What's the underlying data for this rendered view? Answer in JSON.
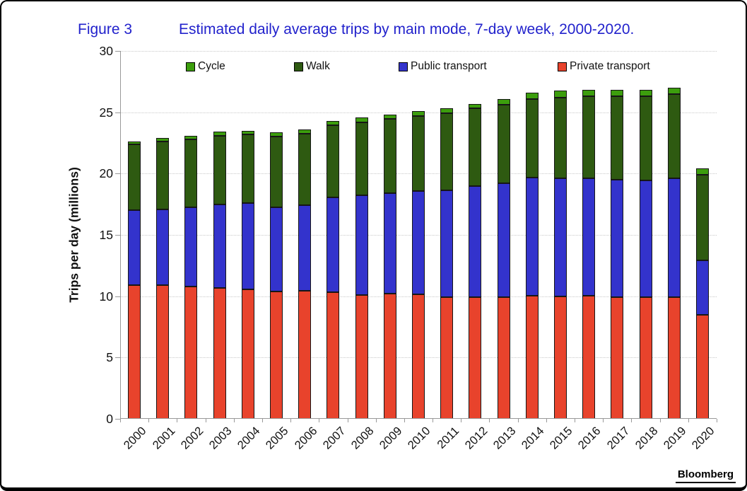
{
  "figure": {
    "label": "Figure 3",
    "title": "Estimated daily average trips by main mode, 7-day week, 2000-2020.",
    "title_color": "#2222cc"
  },
  "branding": {
    "logo": "Bloomberg"
  },
  "chart_data": {
    "type": "bar",
    "stacked": true,
    "title": "Estimated daily average trips by main mode, 7-day week, 2000-2020.",
    "xlabel": "",
    "ylabel": "Trips per day (millions)",
    "ylim": [
      0,
      30
    ],
    "ytick_interval": 5,
    "yticks": [
      "0",
      "5",
      "10",
      "15",
      "20",
      "25",
      "30"
    ],
    "grid": "horizontal-dotted",
    "legend_position": "top",
    "legend_order": [
      "Cycle",
      "Walk",
      "Public transport",
      "Private transport"
    ],
    "categories": [
      "2000",
      "2001",
      "2002",
      "2003",
      "2004",
      "2005",
      "2006",
      "2007",
      "2008",
      "2009",
      "2010",
      "2011",
      "2012",
      "2013",
      "2014",
      "2015",
      "2016",
      "2017",
      "2018",
      "2019",
      "2020"
    ],
    "series": [
      {
        "name": "Private transport",
        "color": "#e8432c",
        "values": [
          10.9,
          10.9,
          10.8,
          10.7,
          10.55,
          10.4,
          10.45,
          10.3,
          10.1,
          10.2,
          10.15,
          9.95,
          9.95,
          9.9,
          10.05,
          10.0,
          10.05,
          9.95,
          9.9,
          9.9,
          8.5
        ]
      },
      {
        "name": "Public transport",
        "color": "#3333cc",
        "values": [
          6.1,
          6.2,
          6.45,
          6.8,
          7.05,
          6.85,
          7.0,
          7.75,
          8.15,
          8.2,
          8.4,
          8.7,
          9.05,
          9.3,
          9.6,
          9.6,
          9.55,
          9.55,
          9.55,
          9.7,
          4.4
        ]
      },
      {
        "name": "Walk",
        "color": "#2e5a11",
        "values": [
          5.4,
          5.5,
          5.55,
          5.6,
          5.6,
          5.75,
          5.8,
          5.9,
          5.95,
          6.05,
          6.15,
          6.25,
          6.3,
          6.4,
          6.45,
          6.6,
          6.7,
          6.8,
          6.85,
          6.9,
          7.0
        ]
      },
      {
        "name": "Cycle",
        "color": "#3c9e0d",
        "values": [
          0.2,
          0.3,
          0.3,
          0.3,
          0.3,
          0.35,
          0.35,
          0.35,
          0.35,
          0.35,
          0.4,
          0.4,
          0.4,
          0.45,
          0.5,
          0.55,
          0.55,
          0.5,
          0.5,
          0.5,
          0.55
        ]
      }
    ]
  }
}
